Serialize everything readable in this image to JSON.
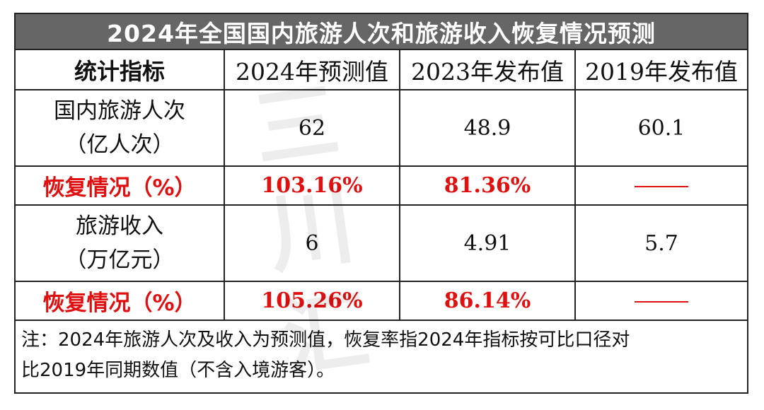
{
  "title": "2024年全国国内旅游人次和旅游收入恢复情况预测",
  "header": {
    "col1": "统计指标",
    "col2": "2024年预测值",
    "col3": "2023年发布值",
    "col4": "2019年发布值"
  },
  "rows": [
    {
      "label_line1": "国内旅游人次",
      "label_line2": "（亿人次）",
      "v2024": "62",
      "v2023": "48.9",
      "v2019": "60.1"
    },
    {
      "label": "恢复情况（%）",
      "v2024": "103.16%",
      "v2023": "81.36%",
      "v2019": "——"
    },
    {
      "label_line1": "旅游收入",
      "label_line2": "（万亿元）",
      "v2024": "6",
      "v2023": "4.91",
      "v2019": "5.7"
    },
    {
      "label": "恢复情况（%）",
      "v2024": "105.26%",
      "v2023": "86.14%",
      "v2019": "——"
    }
  ],
  "note": {
    "line1": "注：2024年旅游人次及收入为预测值，恢复率指2024年指标按可比口径对",
    "line2": "比2019年同期数值（不含入境游客）。"
  },
  "watermark": "三川汇",
  "colors": {
    "title_bg": "#666666",
    "recovery_text": "#e01010",
    "border": "#222222"
  }
}
